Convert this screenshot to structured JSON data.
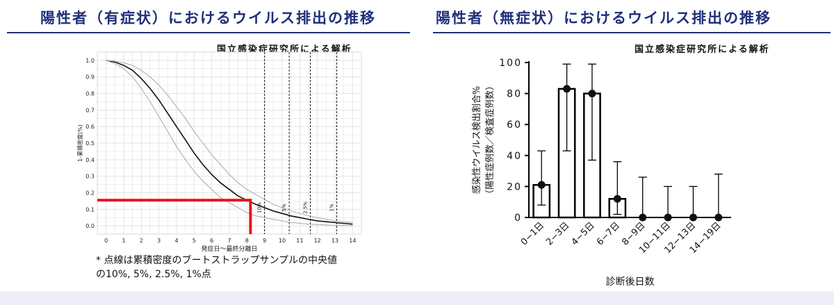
{
  "left_panel": {
    "title": "陽性者（有症状）におけるウイルス排出の推移",
    "source": "国立感染症研究所による解析",
    "note_line1": "* 点線は累積密度のブートストラップサンプルの中央値",
    "note_line2": "の10%, 5%, 2.5%, 1%点"
  },
  "right_panel": {
    "title": "陽性者（無症状）におけるウイルス排出の推移",
    "source": "国立感染症研究所による解析"
  },
  "colors": {
    "title": "#1f2f7a",
    "curve": "#111111",
    "curve_band": "#a8a8a8",
    "highlight": "#e8141a",
    "grid": "#e3e3e3",
    "bar_fill": "#ffffff",
    "bar_stroke": "#000000"
  },
  "chart_data": [
    {
      "type": "line",
      "xlabel": "発症日〜最終分離日",
      "ylabel": "1-累積密度(%)",
      "x_ticks": [
        "0",
        "1",
        "2",
        "3",
        "4",
        "5",
        "6",
        "7",
        "8",
        "9",
        "10",
        "11",
        "12",
        "13",
        "14"
      ],
      "y_ticks": [
        "0.0",
        "0.1",
        "0.2",
        "0.3",
        "0.4",
        "0.5",
        "0.6",
        "0.7",
        "0.8",
        "0.9",
        "1.0"
      ],
      "xlim": [
        -0.5,
        14.5
      ],
      "ylim": [
        -0.05,
        1.05
      ],
      "grid": true,
      "series": [
        {
          "role": "median",
          "x": [
            0,
            0.5,
            1,
            1.5,
            2,
            2.5,
            3,
            3.5,
            4,
            4.5,
            5,
            5.5,
            6,
            6.5,
            7,
            7.5,
            8,
            8.5,
            9,
            9.5,
            10,
            10.5,
            11,
            11.5,
            12,
            12.5,
            13,
            13.5,
            14
          ],
          "y": [
            1.0,
            0.99,
            0.97,
            0.94,
            0.89,
            0.83,
            0.76,
            0.68,
            0.6,
            0.52,
            0.44,
            0.37,
            0.31,
            0.26,
            0.22,
            0.18,
            0.155,
            0.13,
            0.11,
            0.09,
            0.075,
            0.06,
            0.05,
            0.04,
            0.03,
            0.025,
            0.02,
            0.015,
            0.01
          ]
        },
        {
          "role": "upper-band",
          "x": [
            0,
            0.5,
            1,
            1.5,
            2,
            2.5,
            3,
            3.5,
            4,
            4.5,
            5,
            5.5,
            6,
            6.5,
            7,
            7.5,
            8,
            8.5,
            9,
            9.5,
            10,
            10.5,
            11,
            11.5,
            12,
            12.5,
            13,
            13.5,
            14
          ],
          "y": [
            1.0,
            0.995,
            0.985,
            0.97,
            0.94,
            0.9,
            0.85,
            0.79,
            0.72,
            0.65,
            0.57,
            0.5,
            0.43,
            0.37,
            0.31,
            0.26,
            0.22,
            0.19,
            0.16,
            0.13,
            0.11,
            0.09,
            0.075,
            0.06,
            0.05,
            0.04,
            0.03,
            0.025,
            0.02
          ]
        },
        {
          "role": "lower-band",
          "x": [
            0,
            0.5,
            1,
            1.5,
            2,
            2.5,
            3,
            3.5,
            4,
            4.5,
            5,
            5.5,
            6,
            6.5,
            7,
            7.5,
            8,
            8.5,
            9,
            9.5,
            10,
            10.5,
            11,
            11.5,
            12,
            12.5,
            13,
            13.5,
            14
          ],
          "y": [
            1.0,
            0.98,
            0.95,
            0.9,
            0.83,
            0.75,
            0.66,
            0.57,
            0.48,
            0.4,
            0.33,
            0.27,
            0.22,
            0.17,
            0.14,
            0.11,
            0.08,
            0.06,
            0.05,
            0.04,
            0.03,
            0.02,
            0.015,
            0.01,
            0.008,
            0.005,
            0.003,
            0.002,
            0.001
          ]
        }
      ],
      "percentile_lines": [
        {
          "x": 9.0,
          "label": "10%"
        },
        {
          "x": 10.4,
          "label": "5%"
        },
        {
          "x": 11.6,
          "label": "2.5%"
        },
        {
          "x": 13.1,
          "label": "1%"
        }
      ],
      "highlight": {
        "x": 8.2,
        "y": 0.155
      }
    },
    {
      "type": "bar",
      "xlabel": "診断後日数",
      "ylabel": "感染性ウイルス検出割合%",
      "ylabel_sub": "（陽性症例数／検査症例数）",
      "categories": [
        "0−1日",
        "2−3日",
        "4−5日",
        "6−7日",
        "8−9日",
        "10−11日",
        "12−13日",
        "14−19日"
      ],
      "values": [
        21,
        83,
        80,
        12,
        0,
        0,
        0,
        0
      ],
      "ci_low": [
        8,
        43,
        37,
        2,
        0,
        0,
        0,
        0
      ],
      "ci_high": [
        43,
        99,
        99,
        36,
        26,
        20,
        20,
        28
      ],
      "y_ticks": [
        "0",
        "20",
        "40",
        "60",
        "80",
        "100"
      ],
      "ylim": [
        0,
        100
      ],
      "grid": false
    }
  ]
}
